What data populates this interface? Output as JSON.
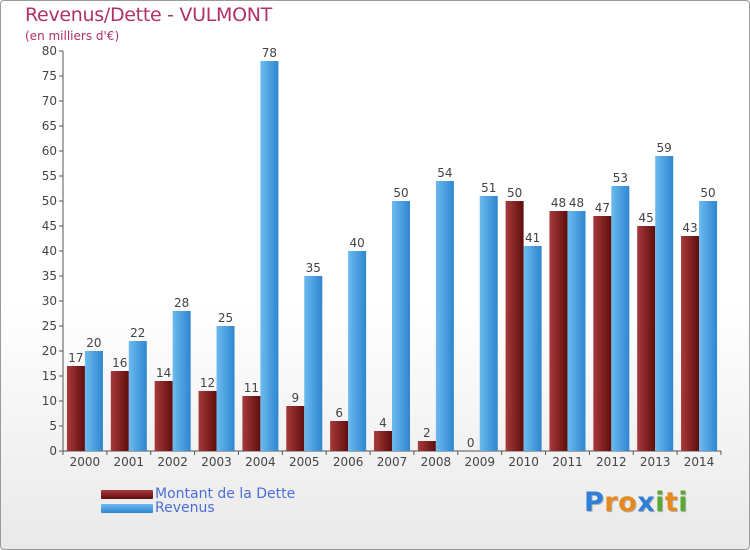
{
  "header": {
    "title": "Revenus/Dette - VULMONT",
    "subtitle": "(en milliers d'€)"
  },
  "chart_data": {
    "type": "bar",
    "title": "Revenus/Dette - VULMONT",
    "subtitle": "(en milliers d'€)",
    "xlabel": "",
    "ylabel": "",
    "ylim": [
      0,
      80
    ],
    "yticks": [
      0,
      5,
      10,
      15,
      20,
      25,
      30,
      35,
      40,
      45,
      50,
      55,
      60,
      65,
      70,
      75,
      80
    ],
    "grid": false,
    "legend_position": "bottom-left",
    "categories": [
      "2000",
      "2001",
      "2002",
      "2003",
      "2004",
      "2005",
      "2006",
      "2007",
      "2008",
      "2009",
      "2010",
      "2011",
      "2012",
      "2013",
      "2014"
    ],
    "series": [
      {
        "name": "Montant de la Dette",
        "color": "#7a1a1a",
        "values": [
          17,
          16,
          14,
          12,
          11,
          9,
          6,
          4,
          2,
          0,
          50,
          48,
          47,
          45,
          43
        ]
      },
      {
        "name": "Revenus",
        "color": "#4aa3e3",
        "values": [
          20,
          22,
          28,
          25,
          78,
          35,
          40,
          50,
          54,
          51,
          41,
          48,
          53,
          59,
          50
        ]
      }
    ]
  },
  "legend": {
    "debt_label": "Montant de la Dette",
    "revenue_label": "Revenus"
  },
  "logo": {
    "letters": [
      "P",
      "r",
      "o",
      "x",
      "i",
      "t",
      "i"
    ],
    "colors": [
      "#2f7fd8",
      "#e58a1f",
      "#e58a1f",
      "#2f7fd8",
      "#5aa832",
      "#e58a1f",
      "#5aa832"
    ]
  }
}
